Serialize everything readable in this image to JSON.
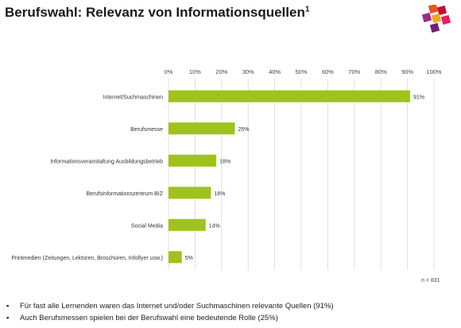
{
  "title": "Berufswahl: Relevanz von Informationsquellen",
  "title_sup": "1",
  "note": "n = 831",
  "bullets": [
    "Für fast alle Lernenden waren das Internet und/oder Suchmaschinen relevante Quellen (91%)",
    "Auch Berufsmessen spielen bei der Berufswahl eine bedeutende Rolle (25%)"
  ],
  "colors": {
    "bar": "#9fc31c",
    "grid": "#d9d9d9"
  },
  "logo_colors": [
    "#e8531f",
    "#c8102e",
    "#9c2a8a",
    "#f5a623",
    "#e91e63",
    "#6d2077"
  ],
  "chart_data": {
    "type": "bar",
    "orientation": "horizontal",
    "categories": [
      "Internet/Suchmaschinen",
      "Berufsmesse",
      "Informationsveranstaltung Ausbildungsbetrieb",
      "Berufsinformationszentrum BIZ",
      "Social Media",
      "Printmedien (Zeitungen, Lektüren, Broschüren, Infoflyer usw.)"
    ],
    "values": [
      91,
      25,
      18,
      16,
      14,
      5
    ],
    "value_labels": [
      "91%",
      "25%",
      "18%",
      "16%",
      "14%",
      "5%"
    ],
    "ticks": [
      "0%",
      "10%",
      "20%",
      "30%",
      "40%",
      "50%",
      "60%",
      "70%",
      "80%",
      "90%",
      "100%"
    ],
    "xlim": [
      0,
      100
    ],
    "grid": true,
    "axis_position": "top"
  }
}
